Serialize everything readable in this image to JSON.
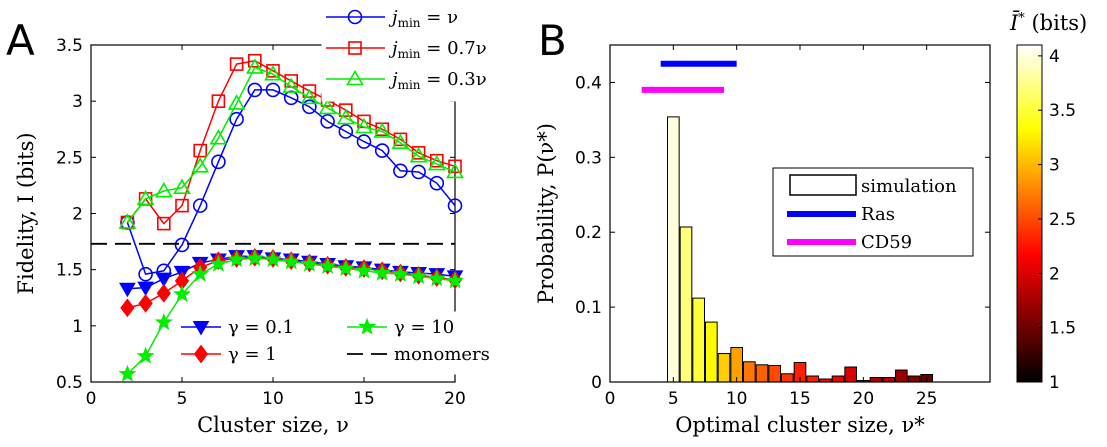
{
  "chart_data": [
    {
      "panel": "A",
      "type": "line",
      "xlabel": "Cluster size, ν",
      "ylabel": "Fidelity, I (bits)",
      "xlim": [
        0,
        20
      ],
      "ylim": [
        0.5,
        3.5
      ],
      "xticks": [
        0,
        5,
        10,
        15,
        20
      ],
      "yticks": [
        0.5,
        1,
        1.5,
        2,
        2.5,
        3,
        3.5
      ],
      "grid": false,
      "x": [
        2,
        3,
        4,
        5,
        6,
        7,
        8,
        9,
        10,
        11,
        12,
        13,
        14,
        15,
        16,
        17,
        18,
        19,
        20
      ],
      "legend_top": {
        "placement": "top-right"
      },
      "legend_bottom": {
        "placement": "bottom"
      },
      "series": [
        {
          "name": "jmin = ν",
          "label_main": "j",
          "label_sub": "min",
          "label_rest": " = ν",
          "color": "#0000ff",
          "marker": "circle",
          "line": "solid",
          "values": [
            1.92,
            1.46,
            1.49,
            1.72,
            2.07,
            2.46,
            2.84,
            3.1,
            3.1,
            3.03,
            2.95,
            2.82,
            2.73,
            2.64,
            2.56,
            2.38,
            2.37,
            2.27,
            2.07
          ]
        },
        {
          "name": "jmin = 0.7ν",
          "label_main": "j",
          "label_sub": "min",
          "label_rest": " = 0.7ν",
          "color": "#ff0000",
          "marker": "square",
          "line": "solid",
          "values": [
            1.92,
            2.13,
            1.91,
            2.07,
            2.56,
            3.0,
            3.33,
            3.36,
            3.27,
            3.18,
            3.09,
            3.01,
            2.92,
            2.82,
            2.75,
            2.66,
            2.54,
            2.47,
            2.42
          ]
        },
        {
          "name": "jmin = 0.3ν",
          "label_main": "j",
          "label_sub": "min",
          "label_rest": " = 0.3ν",
          "color": "#00ee00",
          "marker": "triangle",
          "line": "solid",
          "values": [
            1.92,
            2.13,
            2.2,
            2.23,
            2.42,
            2.67,
            2.98,
            3.3,
            3.24,
            3.13,
            3.03,
            2.94,
            2.85,
            2.77,
            2.73,
            2.63,
            2.51,
            2.44,
            2.37
          ]
        },
        {
          "name": "γ = 0.1",
          "label_main": "γ = 0.1",
          "color": "#0000ff",
          "marker": "triangle-down",
          "line": "solid",
          "values": [
            1.33,
            1.34,
            1.42,
            1.48,
            1.56,
            1.59,
            1.62,
            1.62,
            1.6,
            1.59,
            1.57,
            1.55,
            1.53,
            1.52,
            1.5,
            1.48,
            1.47,
            1.46,
            1.44
          ]
        },
        {
          "name": "γ = 1",
          "label_main": "γ = 1",
          "color": "#ff0000",
          "marker": "diamond",
          "line": "solid",
          "values": [
            1.16,
            1.2,
            1.29,
            1.4,
            1.52,
            1.58,
            1.6,
            1.61,
            1.6,
            1.58,
            1.56,
            1.54,
            1.52,
            1.51,
            1.49,
            1.47,
            1.45,
            1.43,
            1.41
          ]
        },
        {
          "name": "γ = 10",
          "label_main": "γ = 10",
          "color": "#00ee00",
          "marker": "star",
          "line": "solid",
          "values": [
            0.57,
            0.73,
            1.03,
            1.28,
            1.46,
            1.55,
            1.59,
            1.6,
            1.59,
            1.57,
            1.55,
            1.53,
            1.51,
            1.49,
            1.47,
            1.46,
            1.44,
            1.42,
            1.4
          ]
        },
        {
          "name": "monomers",
          "label_main": "monomers",
          "color": "#000000",
          "marker": "none",
          "line": "dashed",
          "constant": 1.73
        }
      ]
    },
    {
      "panel": "B",
      "type": "bar",
      "xlabel": "Optimal cluster size, ν*",
      "ylabel": "Probability, P(ν*)",
      "xlim": [
        0,
        30
      ],
      "ylim": [
        0,
        0.45
      ],
      "xticks": [
        0,
        5,
        10,
        15,
        20,
        25
      ],
      "yticks": [
        0,
        0.1,
        0.2,
        0.3,
        0.4
      ],
      "grid": false,
      "legend": {
        "placement": "center-right"
      },
      "bars": {
        "name": "simulation",
        "x": [
          5,
          6,
          7,
          8,
          9,
          10,
          11,
          12,
          13,
          14,
          15,
          16,
          17,
          18,
          19,
          20,
          21,
          22,
          23,
          24,
          25
        ],
        "values": [
          0.354,
          0.207,
          0.112,
          0.08,
          0.038,
          0.046,
          0.027,
          0.023,
          0.022,
          0.011,
          0.026,
          0.008,
          0.004,
          0.008,
          0.02,
          0.002,
          0.006,
          0.006,
          0.016,
          0.008,
          0.01
        ],
        "fidelity_bits": [
          4.0,
          3.7,
          3.5,
          3.3,
          3.1,
          2.9,
          2.7,
          2.6,
          2.5,
          2.4,
          2.3,
          2.3,
          2.2,
          2.1,
          2.0,
          1.9,
          1.8,
          1.8,
          1.7,
          1.6,
          1.5
        ]
      },
      "ranges": [
        {
          "name": "Ras",
          "color": "#0000ff",
          "x_start": 4,
          "x_end": 10,
          "y": 0.425
        },
        {
          "name": "CD59",
          "color": "#ff00ff",
          "x_start": 2.5,
          "x_end": 9,
          "y": 0.39
        }
      ],
      "colorbar": {
        "title_main": "Ī",
        "title_sup": "*",
        "title_units": " (bits)",
        "range": [
          1,
          4.1
        ],
        "ticks": [
          1,
          1.5,
          2,
          2.5,
          3,
          3.5,
          4
        ],
        "colormap": "hot"
      }
    }
  ],
  "panel_labels": [
    "A",
    "B"
  ]
}
